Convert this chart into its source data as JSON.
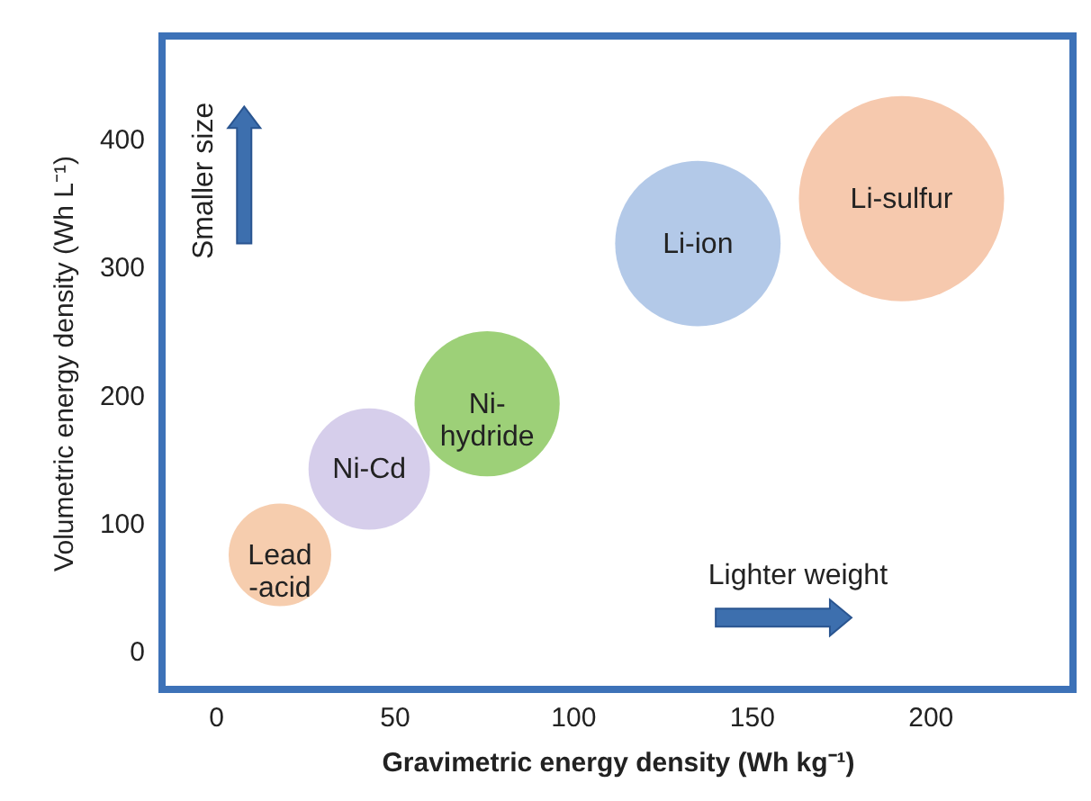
{
  "chart_data": {
    "type": "bubble",
    "xlabel": "Gravimetric energy density (Wh kg⁻¹)",
    "ylabel": "Volumetric energy density (Wh L⁻¹)",
    "xlim": [
      -15,
      240
    ],
    "ylim": [
      -30,
      480
    ],
    "xticks": [
      0,
      50,
      100,
      150,
      200
    ],
    "yticks": [
      0,
      100,
      200,
      300,
      400
    ],
    "grid": false,
    "series": [
      {
        "name": "Lead\n-acid",
        "color": "#f5c4a0",
        "x": [
          18
        ],
        "values": [
          75
        ],
        "sizes": [
          0.25
        ]
      },
      {
        "name": "Ni-Cd",
        "color": "#cfc6e8",
        "x": [
          43
        ],
        "values": [
          142
        ],
        "sizes": [
          0.35
        ]
      },
      {
        "name": "Ni-\nhydride",
        "color": "#8cc860",
        "x": [
          76
        ],
        "values": [
          193
        ],
        "sizes": [
          0.5
        ]
      },
      {
        "name": "Li-ion",
        "color": "#a6bfe4",
        "x": [
          135
        ],
        "values": [
          318
        ],
        "sizes": [
          0.65
        ]
      },
      {
        "name": "Li-sulfur",
        "color": "#f5c0a0",
        "x": [
          192
        ],
        "values": [
          353
        ],
        "sizes": [
          1
        ]
      }
    ],
    "annotations": [
      "Smaller size",
      "Lighter weight"
    ]
  }
}
